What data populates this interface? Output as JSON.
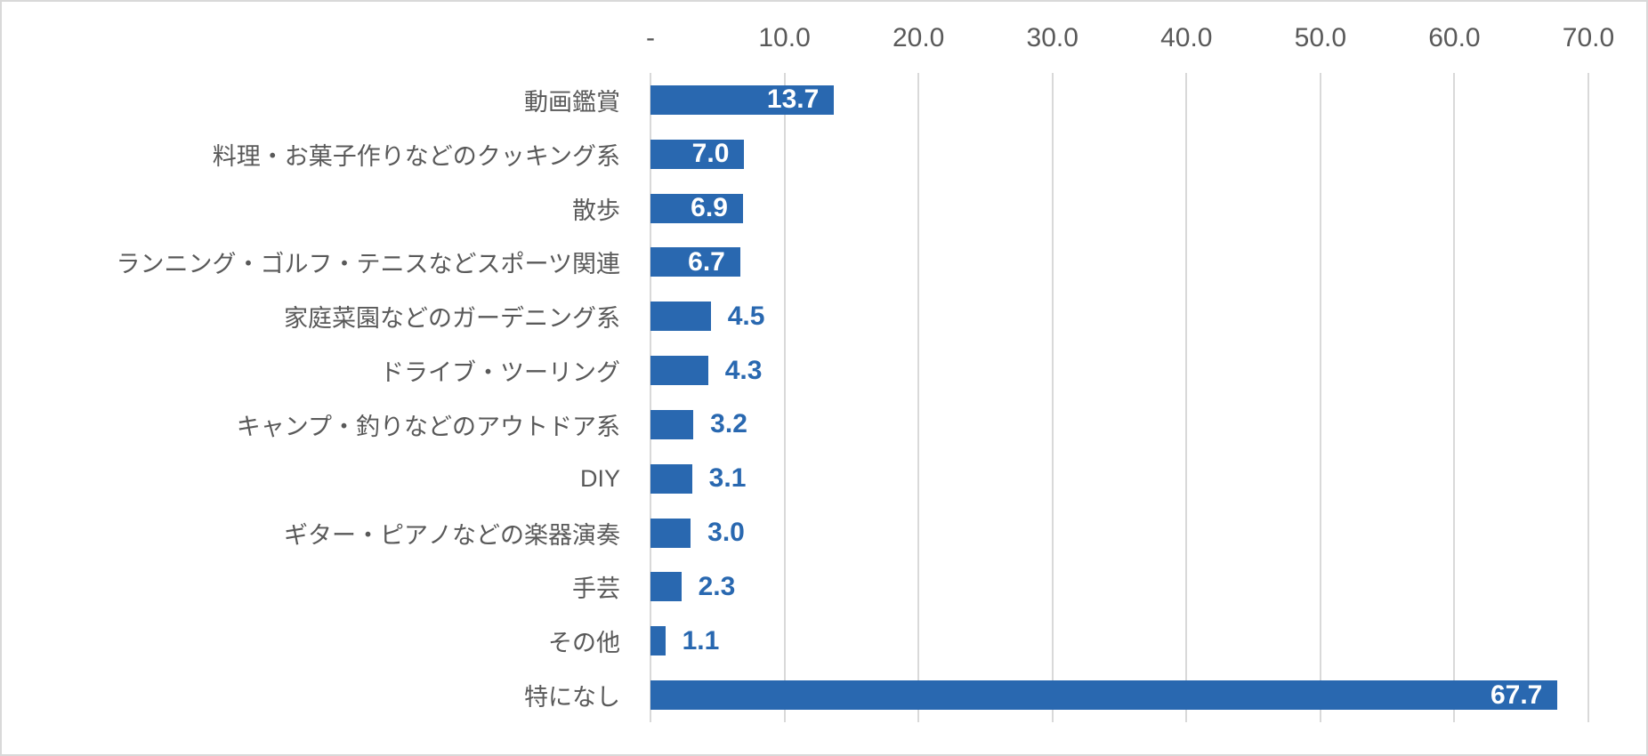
{
  "chart_data": {
    "type": "bar",
    "orientation": "horizontal",
    "title": "",
    "xlabel": "",
    "ylabel": "",
    "xlim": [
      0,
      70
    ],
    "grid": true,
    "legend": false,
    "categories": [
      "動画鑑賞",
      "料理・お菓子作りなどのクッキング系",
      "散歩",
      "ランニング・ゴルフ・テニスなどスポーツ関連",
      "家庭菜園などのガーデニング系",
      "ドライブ・ツーリング",
      "キャンプ・釣りなどのアウトドア系",
      "DIY",
      "ギター・ピアノなどの楽器演奏",
      "手芸",
      "その他",
      "特になし"
    ],
    "values": [
      13.7,
      7.0,
      6.9,
      6.7,
      4.5,
      4.3,
      3.2,
      3.1,
      3.0,
      2.3,
      1.1,
      67.7
    ],
    "value_labels": [
      "13.7",
      "7.0",
      "6.9",
      "6.7",
      "4.5",
      "4.3",
      "3.2",
      "3.1",
      "3.0",
      "2.3",
      "1.1",
      "67.7"
    ],
    "label_positions": [
      "inside",
      "inside",
      "inside",
      "inside",
      "outside",
      "outside",
      "outside",
      "outside",
      "outside",
      "outside",
      "outside",
      "inside"
    ],
    "x_ticks": [
      "-",
      "10.0",
      "20.0",
      "30.0",
      "40.0",
      "50.0",
      "60.0",
      "70.0"
    ],
    "x_tick_values": [
      0,
      10,
      20,
      30,
      40,
      50,
      60,
      70
    ],
    "colors": {
      "bar": "#2968b0",
      "label_inside": "#ffffff",
      "label_outside": "#2968b0",
      "axis_text": "#595959",
      "gridline": "#d9d9d9",
      "border": "#d9d9d9",
      "background": "#ffffff"
    }
  }
}
